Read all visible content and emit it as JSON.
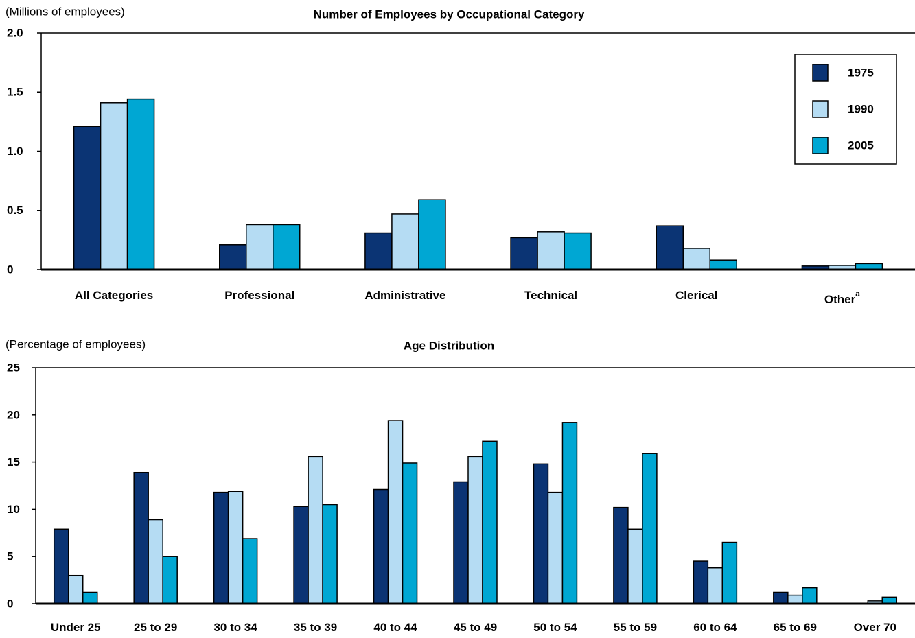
{
  "chart_data": [
    {
      "type": "bar",
      "title": "Number of Employees by Occupational Category",
      "y_axis_label": "(Millions of employees)",
      "categories": [
        "All Categories",
        "Professional",
        "Administrative",
        "Technical",
        "Clerical",
        "Other"
      ],
      "category_superscripts": [
        null,
        null,
        null,
        null,
        null,
        "a"
      ],
      "series": [
        {
          "name": "1975",
          "color": "#0b3474",
          "values": [
            1.21,
            0.21,
            0.31,
            0.27,
            0.37,
            0.03
          ]
        },
        {
          "name": "1990",
          "color": "#b5dcf3",
          "values": [
            1.41,
            0.38,
            0.47,
            0.32,
            0.18,
            0.035
          ]
        },
        {
          "name": "2005",
          "color": "#00a7d3",
          "values": [
            1.44,
            0.38,
            0.59,
            0.31,
            0.08,
            0.05
          ]
        }
      ],
      "ylim": [
        0,
        2
      ],
      "yticks": [
        0,
        0.5,
        {
          "value": 1,
          "label": "1.0"
        },
        1.5,
        {
          "value": 2,
          "label": "2.0"
        }
      ],
      "legend": "top-right"
    },
    {
      "type": "bar",
      "title": "Age Distribution",
      "y_axis_label": "(Percentage of employees)",
      "categories": [
        "Under 25",
        "25 to 29",
        "30 to 34",
        "35 to 39",
        "40 to 44",
        "45 to 49",
        "50 to 54",
        "55 to 59",
        "60 to 64",
        "65 to 69",
        "Over 70"
      ],
      "series": [
        {
          "color": "#0b3474",
          "values": [
            7.9,
            13.9,
            11.8,
            10.3,
            12.1,
            12.9,
            14.8,
            10.2,
            4.5,
            1.2,
            0
          ]
        },
        {
          "color": "#b5dcf3",
          "values": [
            3.0,
            8.9,
            11.9,
            15.6,
            19.4,
            15.6,
            11.8,
            7.9,
            3.8,
            0.9,
            0.3
          ]
        },
        {
          "color": "#00a7d3",
          "values": [
            1.2,
            5.0,
            6.9,
            10.5,
            14.9,
            17.2,
            19.2,
            15.9,
            6.5,
            1.7,
            0.7
          ]
        }
      ],
      "ylim": [
        0,
        25
      ],
      "yticks": [
        0,
        5,
        10,
        15,
        20,
        25
      ]
    }
  ]
}
